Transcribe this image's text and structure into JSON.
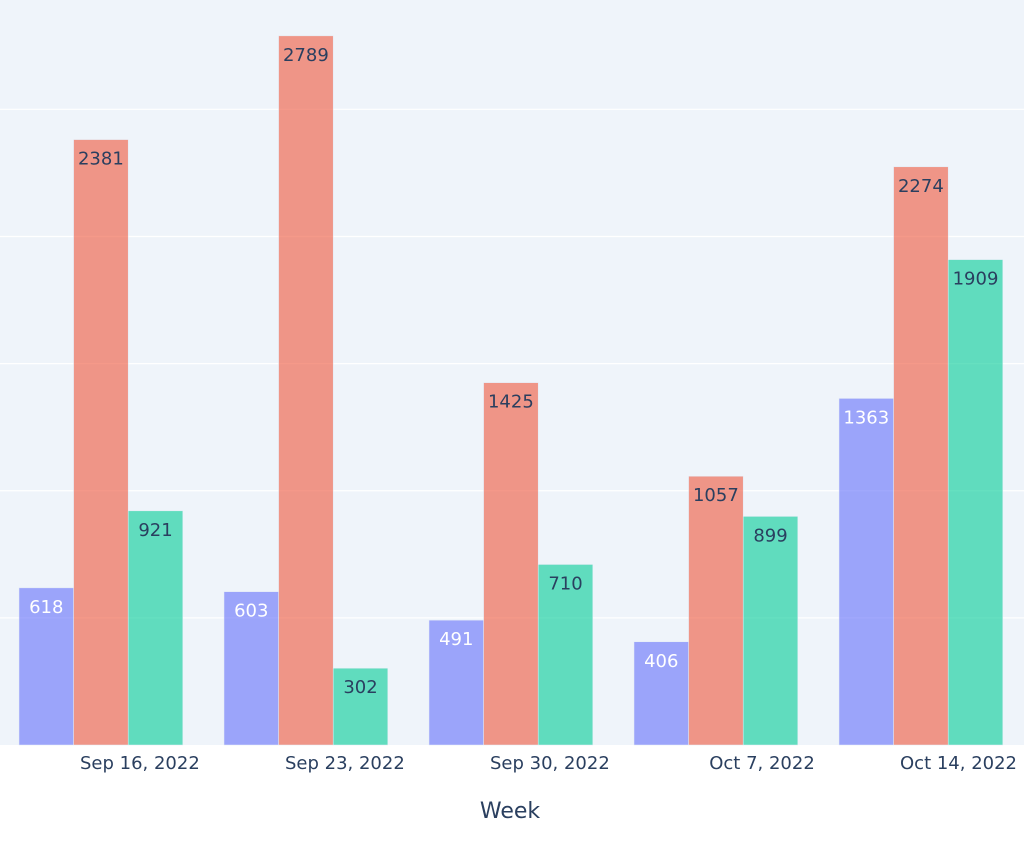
{
  "chart_data": {
    "type": "bar",
    "barmode": "group",
    "categories": [
      "Sep 16, 2022",
      "Sep 23, 2022",
      "Sep 30, 2022",
      "Oct 7, 2022",
      "Oct 14, 2022"
    ],
    "series": [
      {
        "values": [
          618,
          603,
          491,
          406,
          1363
        ],
        "color": "#636efa",
        "label_color": "#ffffff"
      },
      {
        "values": [
          2381,
          2789,
          1425,
          1057,
          2274
        ],
        "color": "#ef553b",
        "label_color": "#2a3f5f"
      },
      {
        "values": [
          921,
          302,
          710,
          899,
          1909
        ],
        "color": "#00cc96",
        "label_color": "#2a3f5f"
      }
    ],
    "xlabel": "Week",
    "ylabel": "",
    "ylim": [
      0,
      2930
    ],
    "y_gridlines": [
      500,
      1000,
      1500,
      2000,
      2500
    ],
    "grid": true,
    "legend": "none",
    "plot_background": "#e5ecf6",
    "gridline_color": "#ffffff",
    "bar_opacity": 0.6,
    "text_position": "inside-end"
  }
}
